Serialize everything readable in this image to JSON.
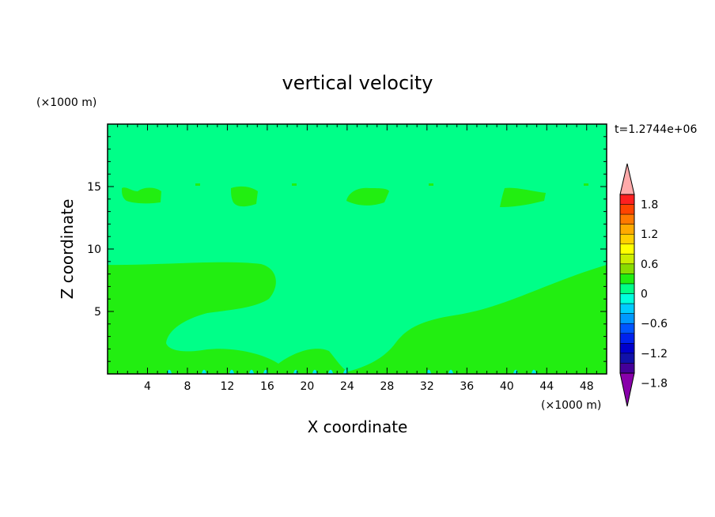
{
  "chart_data": {
    "type": "heatmap",
    "title": "vertical velocity",
    "xlabel": "X coordinate",
    "ylabel": "Z coordinate",
    "x_unit": "(×1000 m)",
    "y_unit": "(×1000 m)",
    "time_label": "t=1.2744e+06",
    "xlim": [
      0,
      50
    ],
    "ylim": [
      0,
      20
    ],
    "x_ticks": [
      4,
      8,
      12,
      16,
      20,
      24,
      28,
      32,
      36,
      40,
      44,
      48
    ],
    "y_ticks": [
      5,
      10,
      15
    ],
    "background_level_color": "#00ff88",
    "fill_colors": {
      "slightly_positive": "#22ee11",
      "slightly_negative": "#00ffcc",
      "negative": "#00eeee"
    },
    "colorbar": {
      "tick_labels": [
        "1.8",
        "1.2",
        "0.6",
        "0",
        "−0.6",
        "−1.2",
        "−1.8"
      ],
      "tick_values": [
        1.8,
        1.2,
        0.6,
        0,
        -0.6,
        -1.2,
        -1.8
      ],
      "levels_top_to_bottom": [
        {
          "color": "#ffaaaa"
        },
        {
          "color": "#ff2020"
        },
        {
          "color": "#ff4400"
        },
        {
          "color": "#ff7a00"
        },
        {
          "color": "#ffaa00"
        },
        {
          "color": "#ffd000"
        },
        {
          "color": "#ffff00"
        },
        {
          "color": "#ccee00"
        },
        {
          "color": "#88dd00"
        },
        {
          "color": "#22ee11"
        },
        {
          "color": "#00ff88"
        },
        {
          "color": "#00ffdd"
        },
        {
          "color": "#00ccff"
        },
        {
          "color": "#0099ff"
        },
        {
          "color": "#0055ff"
        },
        {
          "color": "#0022ee"
        },
        {
          "color": "#0000cc"
        },
        {
          "color": "#1111aa"
        },
        {
          "color": "#440099"
        },
        {
          "color": "#8800aa"
        }
      ]
    }
  }
}
